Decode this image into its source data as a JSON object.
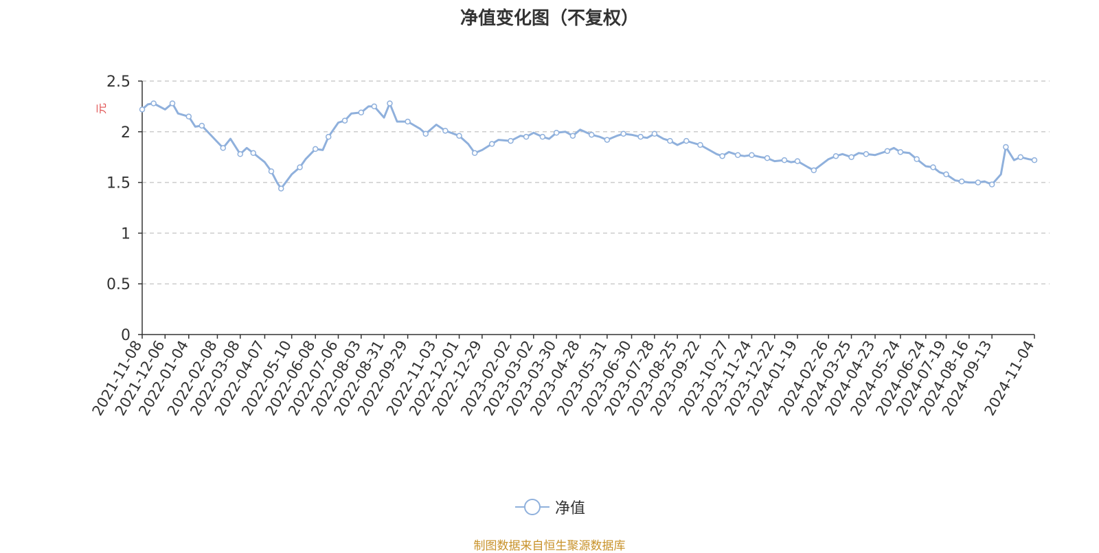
{
  "chart_data": {
    "type": "line",
    "title": "净值变化图（不复权）",
    "ylabel": "元",
    "ylim": [
      0,
      2.5
    ],
    "yticks": [
      "0",
      "0.5",
      "1",
      "1.5",
      "2",
      "2.5"
    ],
    "grid": "horizontal-dashed",
    "legend_placement": "bottom-center",
    "x_tick_labels": [
      "2021-11-08",
      "2021-12-06",
      "2022-01-04",
      "2022-02-08",
      "2022-03-08",
      "2022-04-07",
      "2022-05-10",
      "2022-06-08",
      "2022-07-06",
      "2022-08-03",
      "2022-08-31",
      "2022-09-29",
      "2022-11-03",
      "2022-12-01",
      "2022-12-29",
      "2023-02-02",
      "2023-03-02",
      "2023-03-30",
      "2023-04-28",
      "2023-05-31",
      "2023-06-30",
      "2023-07-28",
      "2023-08-25",
      "2023-09-22",
      "2023-10-27",
      "2023-11-24",
      "2023-12-22",
      "2024-01-19",
      "2024-02-26",
      "2024-03-25",
      "2024-04-23",
      "2024-05-24",
      "2024-06-24",
      "2024-07-19",
      "2024-08-16",
      "2024-09-13",
      "2024-11-04"
    ],
    "series": [
      {
        "name": "净值",
        "color": "#8fb0dc",
        "x": [
          "2021-11-08",
          "2021-11-15",
          "2021-11-22",
          "2021-12-06",
          "2021-12-15",
          "2021-12-22",
          "2022-01-04",
          "2022-01-12",
          "2022-01-20",
          "2022-02-08",
          "2022-02-15",
          "2022-02-24",
          "2022-03-08",
          "2022-03-16",
          "2022-03-24",
          "2022-04-07",
          "2022-04-15",
          "2022-04-22",
          "2022-04-27",
          "2022-05-10",
          "2022-05-20",
          "2022-05-27",
          "2022-06-08",
          "2022-06-17",
          "2022-06-24",
          "2022-07-06",
          "2022-07-14",
          "2022-07-22",
          "2022-08-03",
          "2022-08-12",
          "2022-08-19",
          "2022-08-31",
          "2022-09-07",
          "2022-09-16",
          "2022-09-29",
          "2022-10-14",
          "2022-10-21",
          "2022-11-03",
          "2022-11-14",
          "2022-11-21",
          "2022-12-01",
          "2022-12-12",
          "2022-12-20",
          "2022-12-29",
          "2023-01-10",
          "2023-01-18",
          "2023-02-02",
          "2023-02-14",
          "2023-02-21",
          "2023-03-02",
          "2023-03-13",
          "2023-03-21",
          "2023-03-30",
          "2023-04-10",
          "2023-04-19",
          "2023-04-28",
          "2023-05-12",
          "2023-05-22",
          "2023-05-31",
          "2023-06-12",
          "2023-06-20",
          "2023-06-30",
          "2023-07-11",
          "2023-07-19",
          "2023-07-28",
          "2023-08-08",
          "2023-08-16",
          "2023-08-25",
          "2023-09-05",
          "2023-09-13",
          "2023-09-22",
          "2023-10-12",
          "2023-10-19",
          "2023-10-27",
          "2023-11-07",
          "2023-11-15",
          "2023-11-24",
          "2023-12-05",
          "2023-12-13",
          "2023-12-22",
          "2024-01-03",
          "2024-01-11",
          "2024-01-19",
          "2024-02-01",
          "2024-02-08",
          "2024-02-26",
          "2024-03-06",
          "2024-03-14",
          "2024-03-25",
          "2024-04-03",
          "2024-04-12",
          "2024-04-23",
          "2024-05-08",
          "2024-05-16",
          "2024-05-24",
          "2024-06-04",
          "2024-06-13",
          "2024-06-24",
          "2024-07-03",
          "2024-07-11",
          "2024-07-19",
          "2024-07-30",
          "2024-08-07",
          "2024-08-16",
          "2024-08-27",
          "2024-09-04",
          "2024-09-13",
          "2024-09-24",
          "2024-09-30",
          "2024-10-10",
          "2024-10-18",
          "2024-10-28",
          "2024-11-04"
        ],
        "values": [
          2.22,
          2.27,
          2.28,
          2.22,
          2.28,
          2.18,
          2.15,
          2.05,
          2.06,
          1.9,
          1.84,
          1.93,
          1.78,
          1.84,
          1.79,
          1.7,
          1.61,
          1.5,
          1.44,
          1.58,
          1.65,
          1.73,
          1.83,
          1.82,
          1.95,
          2.09,
          2.11,
          2.18,
          2.19,
          2.25,
          2.25,
          2.14,
          2.28,
          2.1,
          2.1,
          2.03,
          1.98,
          2.07,
          2.01,
          1.99,
          1.96,
          1.88,
          1.79,
          1.82,
          1.88,
          1.92,
          1.91,
          1.96,
          1.95,
          1.99,
          1.95,
          1.93,
          1.99,
          2.0,
          1.96,
          2.02,
          1.97,
          1.95,
          1.92,
          1.96,
          1.98,
          1.97,
          1.95,
          1.94,
          1.98,
          1.93,
          1.91,
          1.87,
          1.91,
          1.89,
          1.87,
          1.78,
          1.76,
          1.8,
          1.77,
          1.76,
          1.77,
          1.75,
          1.74,
          1.71,
          1.72,
          1.7,
          1.71,
          1.65,
          1.62,
          1.73,
          1.76,
          1.78,
          1.75,
          1.79,
          1.78,
          1.77,
          1.81,
          1.84,
          1.8,
          1.79,
          1.73,
          1.66,
          1.65,
          1.6,
          1.58,
          1.52,
          1.51,
          1.5,
          1.5,
          1.51,
          1.48,
          1.58,
          1.85,
          1.72,
          1.75,
          1.73,
          1.72
        ]
      }
    ]
  },
  "source_note": "制图数据来自恒生聚源数据库"
}
